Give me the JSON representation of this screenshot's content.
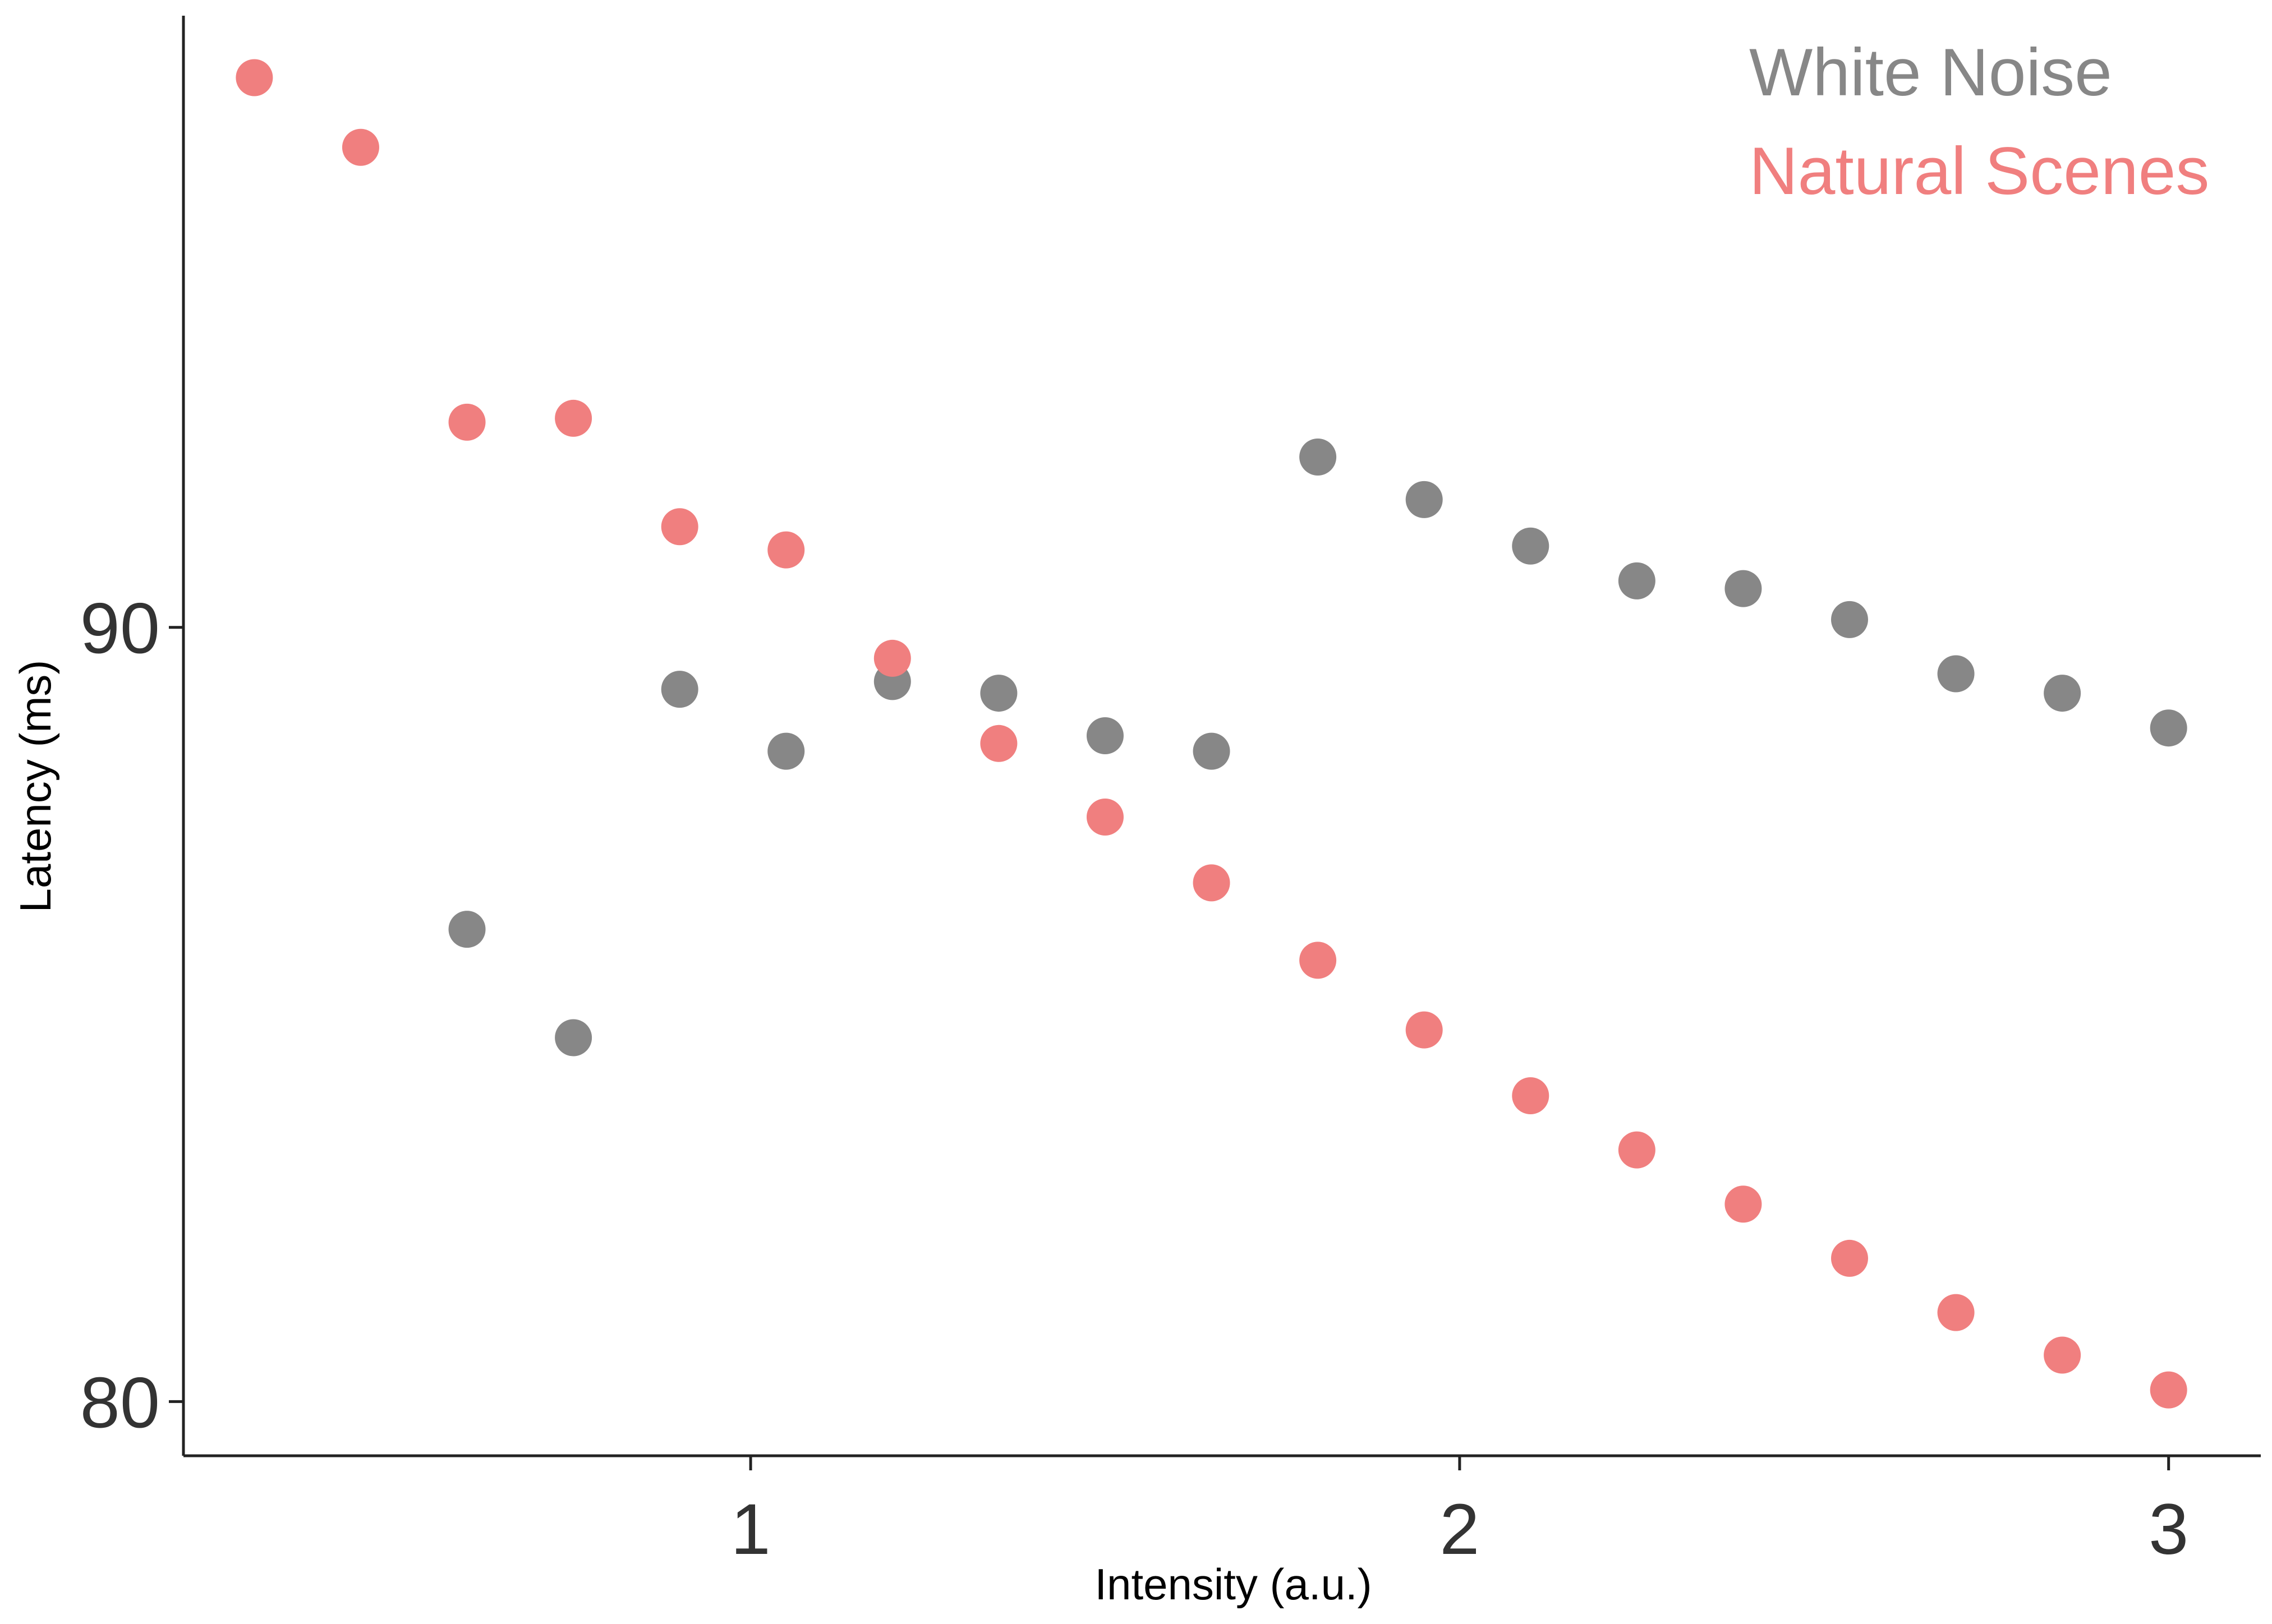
{
  "chart_data": {
    "type": "scatter",
    "title": "",
    "xlabel": "Intensity (a.u.)",
    "ylabel": "Latency (ms)",
    "xlim": [
      0.2,
      3.13
    ],
    "ylim": [
      79.3,
      97.9
    ],
    "x_ticks": [
      1,
      2,
      3
    ],
    "y_ticks": [
      80,
      90
    ],
    "grid": false,
    "legend_position": "top-right",
    "series": [
      {
        "name": "White Noise",
        "color": "#878787",
        "points": [
          {
            "x": 0.6,
            "y": 86.1
          },
          {
            "x": 0.75,
            "y": 84.7
          },
          {
            "x": 0.9,
            "y": 89.2
          },
          {
            "x": 1.05,
            "y": 88.4
          },
          {
            "x": 1.2,
            "y": 89.3
          },
          {
            "x": 1.35,
            "y": 89.15
          },
          {
            "x": 1.5,
            "y": 88.6
          },
          {
            "x": 1.65,
            "y": 88.4
          },
          {
            "x": 1.8,
            "y": 92.2
          },
          {
            "x": 1.95,
            "y": 91.65
          },
          {
            "x": 2.1,
            "y": 91.05
          },
          {
            "x": 2.25,
            "y": 90.6
          },
          {
            "x": 2.4,
            "y": 90.5
          },
          {
            "x": 2.55,
            "y": 90.1
          },
          {
            "x": 2.7,
            "y": 89.4
          },
          {
            "x": 2.85,
            "y": 89.15
          },
          {
            "x": 3.0,
            "y": 88.7
          }
        ]
      },
      {
        "name": "Natural Scenes",
        "color": "#f07f7f",
        "points": [
          {
            "x": 0.3,
            "y": 97.1
          },
          {
            "x": 0.45,
            "y": 96.2
          },
          {
            "x": 0.6,
            "y": 92.65
          },
          {
            "x": 0.75,
            "y": 92.7
          },
          {
            "x": 0.9,
            "y": 91.3
          },
          {
            "x": 1.05,
            "y": 91.0
          },
          {
            "x": 1.2,
            "y": 89.6
          },
          {
            "x": 1.35,
            "y": 88.5
          },
          {
            "x": 1.5,
            "y": 87.55
          },
          {
            "x": 1.65,
            "y": 86.7
          },
          {
            "x": 1.8,
            "y": 85.7
          },
          {
            "x": 1.95,
            "y": 84.8
          },
          {
            "x": 2.1,
            "y": 83.95
          },
          {
            "x": 2.25,
            "y": 83.25
          },
          {
            "x": 2.4,
            "y": 82.55
          },
          {
            "x": 2.55,
            "y": 81.85
          },
          {
            "x": 2.7,
            "y": 81.15
          },
          {
            "x": 2.85,
            "y": 80.6
          },
          {
            "x": 3.0,
            "y": 80.15
          }
        ]
      }
    ]
  }
}
